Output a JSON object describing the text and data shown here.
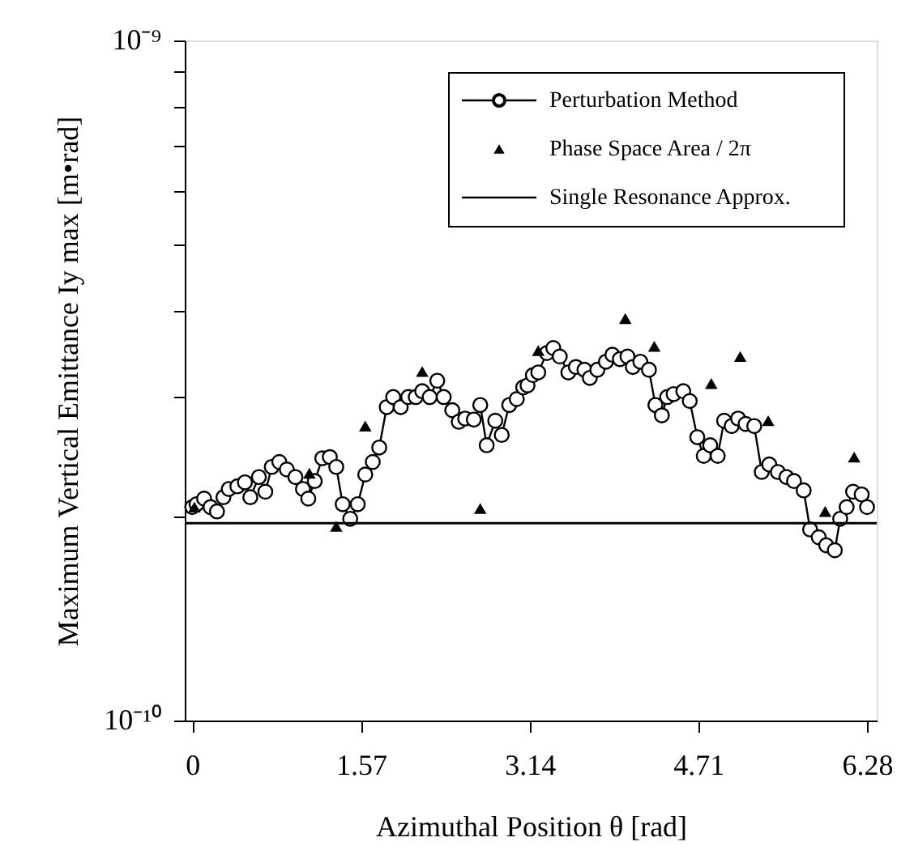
{
  "chart_data": {
    "type": "line",
    "xlabel": "Azimuthal Position θ [rad]",
    "ylabel": "Maximum Vertical Emittance Iy max [m•rad]",
    "xlim": [
      -0.07,
      6.37
    ],
    "xticks": [
      0,
      1.57,
      3.14,
      4.71,
      6.28
    ],
    "ylim": [
      1e-10,
      1e-09
    ],
    "yticks": [
      {
        "value": 1e-10,
        "label": "10⁻¹⁰"
      },
      {
        "value": 2e-10,
        "label": null
      },
      {
        "value": 3e-10,
        "label": null
      },
      {
        "value": 4e-10,
        "label": null
      },
      {
        "value": 5e-10,
        "label": null
      },
      {
        "value": 6e-10,
        "label": null
      },
      {
        "value": 7e-10,
        "label": null
      },
      {
        "value": 8e-10,
        "label": null
      },
      {
        "value": 9e-10,
        "label": null
      },
      {
        "value": 1e-09,
        "label": "10⁻⁹"
      }
    ],
    "log": "y",
    "grid": false,
    "legend": "top right",
    "series": [
      {
        "name": "Perturbation Method",
        "type": "line",
        "marker": "circle",
        "line_style": "solid",
        "color": "#000000",
        "x": [
          0,
          0.04,
          0.11,
          0.17,
          0.23,
          0.29,
          0.34,
          0.42,
          0.49,
          0.54,
          0.62,
          0.68,
          0.74,
          0.81,
          0.88,
          0.96,
          1.03,
          1.08,
          1.14,
          1.21,
          1.28,
          1.34,
          1.4,
          1.47,
          1.54,
          1.61,
          1.68,
          1.74,
          1.81,
          1.87,
          1.94,
          2.01,
          2.08,
          2.14,
          2.21,
          2.28,
          2.34,
          2.42,
          2.48,
          2.54,
          2.62,
          2.68,
          2.74,
          2.82,
          2.88,
          2.95,
          3.02,
          3.08,
          3.12,
          3.17,
          3.22,
          3.3,
          3.36,
          3.42,
          3.5,
          3.57,
          3.65,
          3.7,
          3.77,
          3.85,
          3.91,
          3.98,
          4.05,
          4.1,
          4.17,
          4.25,
          4.31,
          4.37,
          4.42,
          4.48,
          4.57,
          4.63,
          4.7,
          4.76,
          4.82,
          4.89,
          4.95,
          5.02,
          5.08,
          5.15,
          5.23,
          5.3,
          5.37,
          5.45,
          5.53,
          5.6,
          5.69,
          5.75,
          5.83,
          5.9,
          5.98,
          6.03,
          6.09,
          6.15,
          6.23,
          6.28
        ],
        "values": [
          2.06e-10,
          2.08e-10,
          2.12e-10,
          2.06e-10,
          2.03e-10,
          2.13e-10,
          2.19e-10,
          2.21e-10,
          2.24e-10,
          2.13e-10,
          2.28e-10,
          2.17e-10,
          2.36e-10,
          2.4e-10,
          2.34e-10,
          2.28e-10,
          2.19e-10,
          2.12e-10,
          2.25e-10,
          2.43e-10,
          2.44e-10,
          2.36e-10,
          2.08e-10,
          1.98e-10,
          2.08e-10,
          2.3e-10,
          2.4e-10,
          2.52e-10,
          2.89e-10,
          2.99e-10,
          2.89e-10,
          2.99e-10,
          2.99e-10,
          3.05e-10,
          2.99e-10,
          3.16e-10,
          2.99e-10,
          2.86e-10,
          2.75e-10,
          2.78e-10,
          2.77e-10,
          2.91e-10,
          2.54e-10,
          2.76e-10,
          2.63e-10,
          2.91e-10,
          2.97e-10,
          3.09e-10,
          3.11e-10,
          3.22e-10,
          3.25e-10,
          3.47e-10,
          3.53e-10,
          3.43e-10,
          3.25e-10,
          3.31e-10,
          3.28e-10,
          3.19e-10,
          3.28e-10,
          3.37e-10,
          3.45e-10,
          3.4e-10,
          3.43e-10,
          3.31e-10,
          3.37e-10,
          3.28e-10,
          2.91e-10,
          2.81e-10,
          2.99e-10,
          3.02e-10,
          3.05e-10,
          2.95e-10,
          2.61e-10,
          2.45e-10,
          2.54e-10,
          2.45e-10,
          2.76e-10,
          2.71e-10,
          2.78e-10,
          2.73e-10,
          2.71e-10,
          2.32e-10,
          2.38e-10,
          2.32e-10,
          2.28e-10,
          2.25e-10,
          2.18e-10,
          1.91e-10,
          1.86e-10,
          1.81e-10,
          1.78e-10,
          1.98e-10,
          2.06e-10,
          2.17e-10,
          2.15e-10,
          2.06e-10
        ]
      },
      {
        "name": "Phase Space Area / 2π",
        "type": "scatter",
        "marker": "triangle",
        "color": "#000000",
        "x": [
          0.02,
          1.09,
          1.34,
          1.61,
          2.14,
          2.68,
          3.22,
          4.03,
          4.3,
          4.83,
          5.1,
          5.36,
          5.89,
          6.16
        ],
        "values": [
          2.06e-10,
          2.31e-10,
          1.93e-10,
          2.71e-10,
          3.26e-10,
          2.05e-10,
          3.5e-10,
          3.9e-10,
          3.55e-10,
          3.13e-10,
          3.43e-10,
          2.76e-10,
          2.03e-10,
          2.44e-10
        ]
      }
    ],
    "ref_lines": [
      {
        "axis": "y",
        "value": 1.95e-10,
        "label": "Single Resonance Approx.",
        "color": "#000000",
        "line_style": "solid"
      }
    ]
  }
}
